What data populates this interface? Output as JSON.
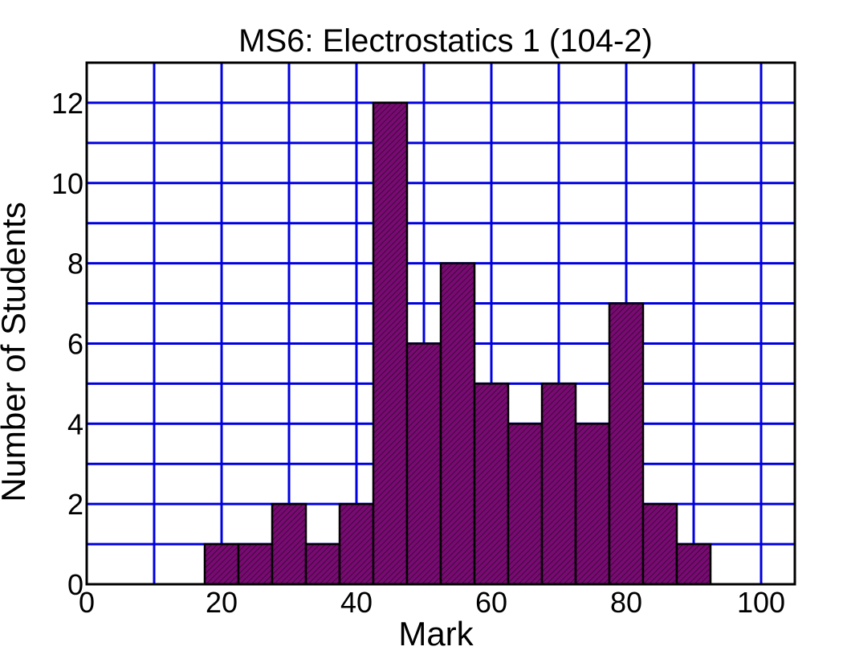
{
  "chart_data": {
    "type": "bar",
    "title": "MS6: Electrostatics 1 (104-2)",
    "xlabel": "Mark",
    "ylabel": "Number of Students",
    "bin_width": 5,
    "bin_starts": [
      17.5,
      22.5,
      27.5,
      32.5,
      37.5,
      42.5,
      47.5,
      52.5,
      57.5,
      62.5,
      67.5,
      72.5,
      77.5,
      82.5,
      87.5
    ],
    "values": [
      1,
      1,
      2,
      1,
      2,
      12,
      6,
      8,
      5,
      4,
      5,
      4,
      7,
      2,
      1
    ],
    "xlim": [
      0,
      105
    ],
    "ylim": [
      0,
      13
    ],
    "xticks": [
      "0",
      "20",
      "40",
      "60",
      "80",
      "100"
    ],
    "yticks": [
      "0",
      "2",
      "4",
      "6",
      "8",
      "10",
      "12"
    ],
    "grid": true,
    "colors": {
      "bar_fill": "#7a0a73",
      "bar_hatch": "#2a0a2a",
      "grid": "#0000e0",
      "frame": "#000000"
    }
  }
}
